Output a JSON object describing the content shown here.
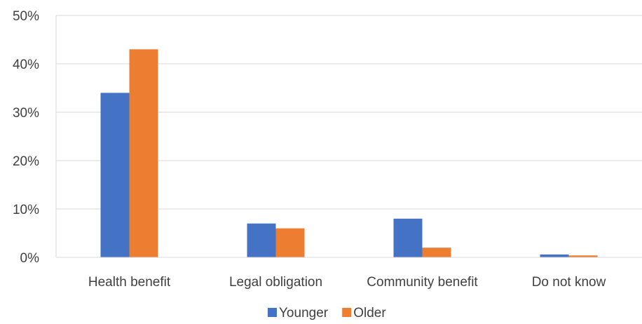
{
  "chart_data": {
    "type": "bar",
    "title": "",
    "xlabel": "",
    "ylabel": "",
    "categories": [
      "Health benefit",
      "Legal obligation",
      "Community benefit",
      "Do not know"
    ],
    "series": [
      {
        "name": "Younger",
        "color": "#4472C4",
        "values": [
          34,
          7,
          8,
          0.6
        ]
      },
      {
        "name": "Older",
        "color": "#ED7D31",
        "values": [
          43,
          6,
          2,
          0.4
        ]
      }
    ],
    "ylim": [
      0,
      50
    ],
    "yticks": [
      0,
      10,
      20,
      30,
      40,
      50
    ],
    "ytick_labels": [
      "0%",
      "10%",
      "20%",
      "30%",
      "40%",
      "50%"
    ],
    "grid": true,
    "legend_position": "bottom"
  }
}
